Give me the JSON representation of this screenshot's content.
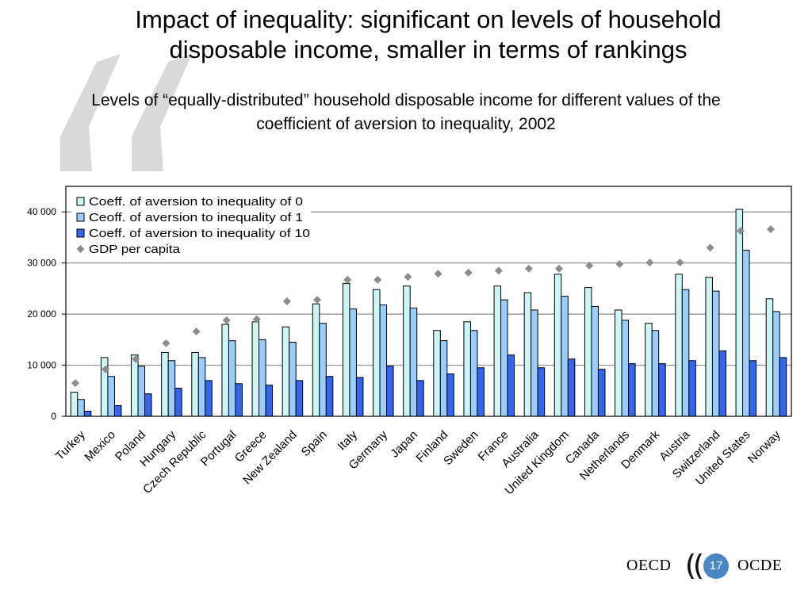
{
  "slide": {
    "title_line1": "Impact of inequality: significant on levels of household",
    "title_line2": "disposable income, smaller in terms of rankings",
    "subtitle_line1": "Levels of “equally-distributed” household disposable income for different values of the",
    "subtitle_line2": "coefficient of aversion to inequality, 2002",
    "page_number": "17",
    "logo_left": "OECD",
    "logo_right": "OCDE"
  },
  "colors": {
    "series0": "#ccf5f5",
    "series1": "#99ccff",
    "series2": "#3366ee",
    "gdp": "#8c8c8c",
    "gridline": "#8c8c8c",
    "quote": "#d9d9d9",
    "badge": "#4a86c5"
  },
  "chart_data": {
    "type": "bar",
    "title": "",
    "xlabel": "",
    "ylabel": "",
    "ylim": [
      0,
      45000
    ],
    "yticks": [
      0,
      10000,
      20000,
      30000,
      40000
    ],
    "ytick_labels": [
      "0",
      "10 000",
      "20 000",
      "30 000",
      "40 000"
    ],
    "grid": true,
    "legend_position": "top-left",
    "categories": [
      "Turkey",
      "Mexico",
      "Poland",
      "Hungary",
      "Czech Republic",
      "Portugal",
      "Greece",
      "New Zealand",
      "Spain",
      "Italy",
      "Germany",
      "Japan",
      "Finland",
      "Sweden",
      "France",
      "Australia",
      "United Kingdom",
      "Canada",
      "Netherlands",
      "Denmark",
      "Austria",
      "Switzerland",
      "United States",
      "Norway"
    ],
    "series": [
      {
        "name": "Coeff. of aversion to inequality of 0",
        "kind": "bar",
        "values": [
          4700,
          11500,
          12000,
          12500,
          12500,
          18000,
          18500,
          17500,
          22000,
          26000,
          24800,
          25500,
          16800,
          18500,
          25500,
          24200,
          27800,
          25200,
          20800,
          18200,
          27800,
          27200,
          40500,
          23000
        ]
      },
      {
        "name": "Ceoff. of aversion to inequality of 1",
        "kind": "bar",
        "values": [
          3300,
          7800,
          9800,
          10900,
          11500,
          14800,
          15000,
          14500,
          18200,
          21000,
          21800,
          21200,
          14800,
          16800,
          22800,
          20800,
          23500,
          21500,
          18800,
          16800,
          24800,
          24500,
          32500,
          20500
        ]
      },
      {
        "name": "Coeff. of aversion to inequality of 10",
        "kind": "bar",
        "values": [
          1000,
          2100,
          4400,
          5500,
          7000,
          6400,
          6100,
          7000,
          7800,
          7600,
          9800,
          7000,
          8300,
          9500,
          12000,
          9500,
          11200,
          9200,
          10300,
          10300,
          10900,
          12800,
          10900,
          11500
        ]
      },
      {
        "name": "GDP per capita",
        "kind": "marker",
        "values": [
          6500,
          9200,
          11200,
          14300,
          16600,
          18800,
          19000,
          22500,
          22800,
          26700,
          26700,
          27300,
          27900,
          28100,
          28500,
          28900,
          28900,
          29500,
          29800,
          30100,
          30100,
          33000,
          36300,
          36600
        ]
      }
    ]
  }
}
